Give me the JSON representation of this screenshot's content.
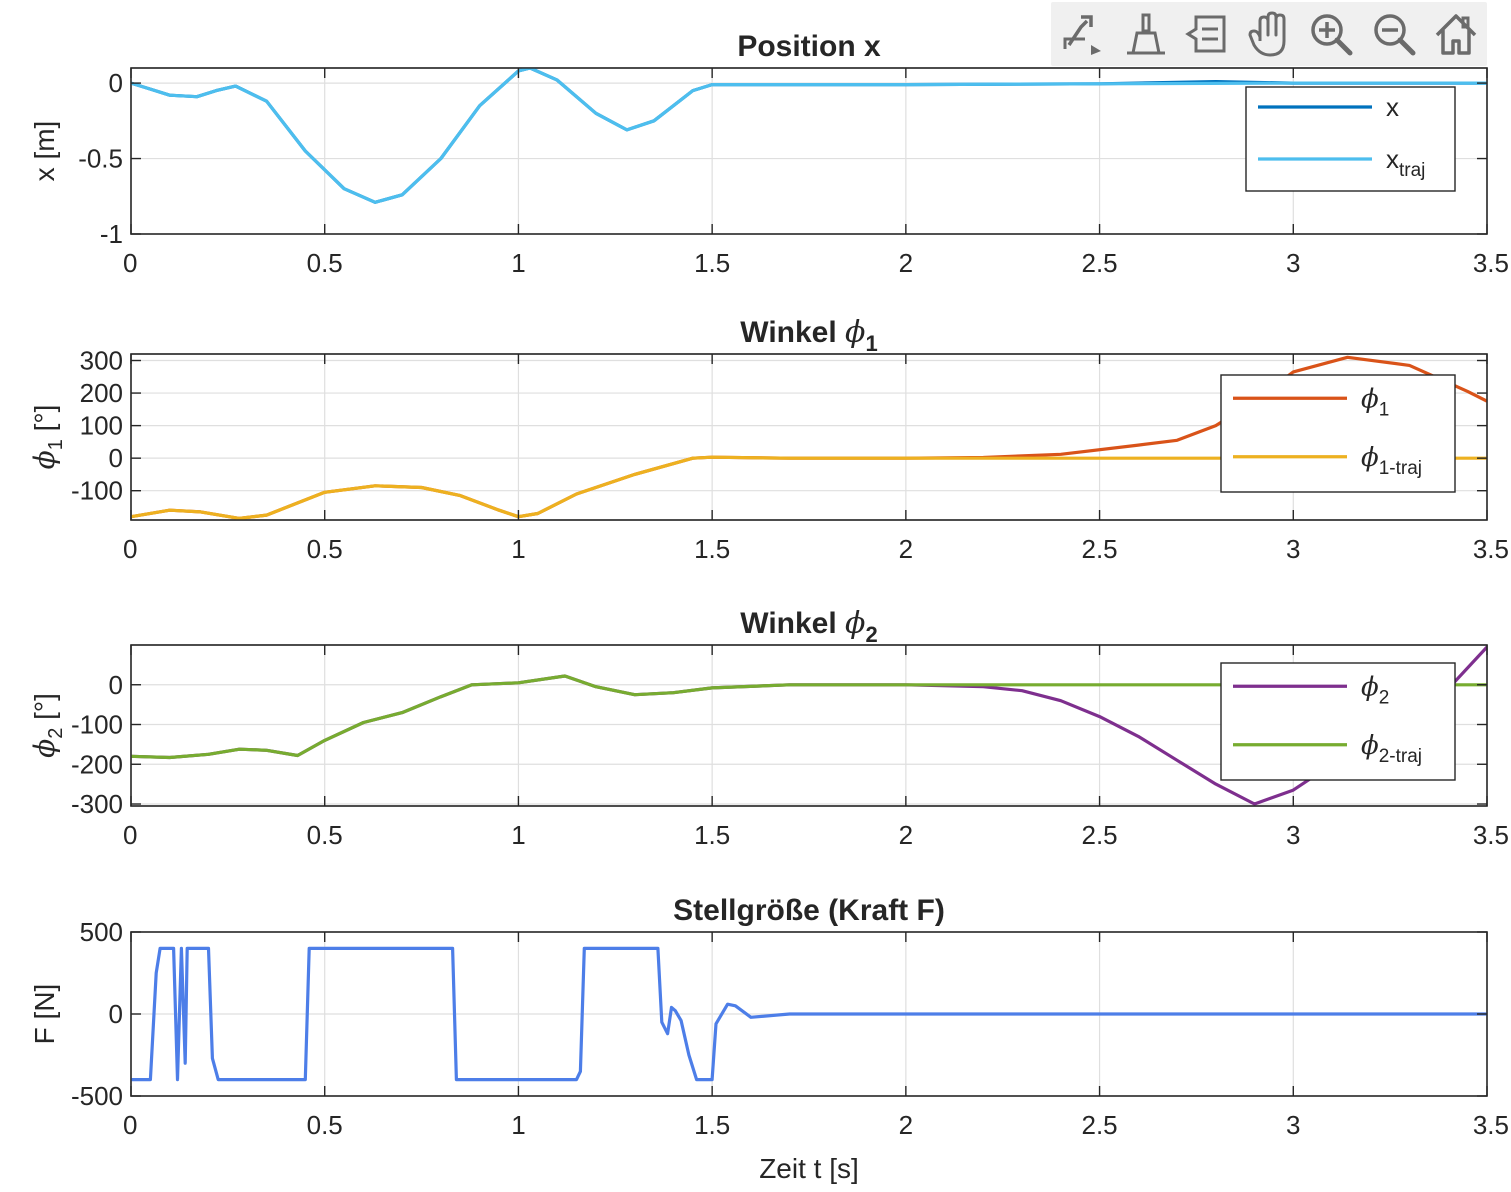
{
  "toolbar": {
    "buttons": [
      {
        "name": "export-icon"
      },
      {
        "name": "brush-icon"
      },
      {
        "name": "data-tips-icon"
      },
      {
        "name": "pan-hand-icon"
      },
      {
        "name": "zoom-in-icon"
      },
      {
        "name": "zoom-out-icon"
      },
      {
        "name": "home-icon"
      }
    ]
  },
  "xlabel": "Zeit t [s]",
  "chart_data": [
    {
      "type": "line",
      "title": "Position x",
      "ylabel": "x [m]",
      "xlim": [
        0,
        3.5
      ],
      "ylim": [
        -1,
        0.1
      ],
      "xticks": [
        0,
        0.5,
        1,
        1.5,
        2,
        2.5,
        3,
        3.5
      ],
      "xtick_labels": [
        "0",
        "0.5",
        "1",
        "1.5",
        "2",
        "2.5",
        "3",
        "3.5"
      ],
      "yticks": [
        -1,
        -0.5,
        0
      ],
      "ytick_labels": [
        "-1",
        "-0.5",
        "0"
      ],
      "grid": true,
      "legend": "top-right",
      "series": [
        {
          "name": "x",
          "name_sub": "",
          "color": "#0072BD",
          "x": [
            0,
            0.05,
            0.1,
            0.17,
            0.22,
            0.27,
            0.35,
            0.45,
            0.55,
            0.63,
            0.7,
            0.8,
            0.9,
            1.0,
            1.03,
            1.1,
            1.2,
            1.28,
            1.35,
            1.45,
            1.5,
            2.0,
            2.5,
            2.8,
            3.0,
            3.5
          ],
          "y": [
            0,
            -0.04,
            -0.08,
            -0.09,
            -0.05,
            -0.02,
            -0.12,
            -0.45,
            -0.7,
            -0.79,
            -0.74,
            -0.5,
            -0.15,
            0.08,
            0.1,
            0.02,
            -0.2,
            -0.31,
            -0.25,
            -0.05,
            -0.01,
            -0.01,
            -0.005,
            0.01,
            0,
            0
          ]
        },
        {
          "name": "x",
          "name_sub": "traj",
          "color": "#4DBEEE",
          "x": [
            0,
            0.05,
            0.1,
            0.17,
            0.22,
            0.27,
            0.35,
            0.45,
            0.55,
            0.63,
            0.7,
            0.8,
            0.9,
            1.0,
            1.03,
            1.1,
            1.2,
            1.28,
            1.35,
            1.45,
            1.5,
            2.0,
            2.5,
            3.0,
            3.5
          ],
          "y": [
            0,
            -0.04,
            -0.08,
            -0.09,
            -0.05,
            -0.02,
            -0.12,
            -0.45,
            -0.7,
            -0.79,
            -0.74,
            -0.5,
            -0.15,
            0.08,
            0.1,
            0.02,
            -0.2,
            -0.31,
            -0.25,
            -0.05,
            -0.01,
            -0.01,
            -0.005,
            0,
            0
          ]
        }
      ]
    },
    {
      "type": "line",
      "title": "Winkel ",
      "title_sym": "ϕ",
      "title_sub": "1",
      "ylabel": "[°]",
      "ylabel_sym": "ϕ",
      "ylabel_sub": "1",
      "xlim": [
        0,
        3.5
      ],
      "ylim": [
        -190,
        320
      ],
      "xticks": [
        0,
        0.5,
        1,
        1.5,
        2,
        2.5,
        3,
        3.5
      ],
      "xtick_labels": [
        "0",
        "0.5",
        "1",
        "1.5",
        "2",
        "2.5",
        "3",
        "3.5"
      ],
      "yticks": [
        -100,
        0,
        100,
        200,
        300
      ],
      "ytick_labels": [
        "-100",
        "0",
        "100",
        "200",
        "300"
      ],
      "grid": true,
      "legend": "top-right",
      "series": [
        {
          "name": "ϕ",
          "name_sub": "1",
          "color": "#D95319",
          "x": [
            0,
            0.1,
            0.18,
            0.28,
            0.35,
            0.5,
            0.63,
            0.75,
            0.85,
            0.95,
            1.0,
            1.05,
            1.15,
            1.3,
            1.45,
            1.5,
            1.7,
            2.0,
            2.2,
            2.4,
            2.6,
            2.7,
            2.8,
            2.9,
            3.0,
            3.14,
            3.3,
            3.45,
            3.5
          ],
          "y": [
            -180,
            -160,
            -165,
            -185,
            -175,
            -105,
            -85,
            -90,
            -115,
            -160,
            -180,
            -170,
            -110,
            -50,
            0,
            3,
            0,
            0,
            2,
            12,
            40,
            55,
            100,
            175,
            265,
            310,
            285,
            205,
            175
          ]
        },
        {
          "name": "ϕ",
          "name_sub": "1-traj",
          "color": "#EDB120",
          "x": [
            0,
            0.1,
            0.18,
            0.28,
            0.35,
            0.5,
            0.63,
            0.75,
            0.85,
            0.95,
            1.0,
            1.05,
            1.15,
            1.3,
            1.45,
            1.5,
            1.7,
            2.0,
            2.5,
            3.0,
            3.5
          ],
          "y": [
            -180,
            -160,
            -165,
            -185,
            -175,
            -105,
            -85,
            -90,
            -115,
            -160,
            -180,
            -170,
            -110,
            -50,
            0,
            3,
            0,
            0,
            0,
            0,
            0
          ]
        }
      ]
    },
    {
      "type": "line",
      "title": "Winkel ",
      "title_sym": "ϕ",
      "title_sub": "2",
      "ylabel": "[°]",
      "ylabel_sym": "ϕ",
      "ylabel_sub": "2",
      "xlim": [
        0,
        3.5
      ],
      "ylim": [
        -305,
        100
      ],
      "xticks": [
        0,
        0.5,
        1,
        1.5,
        2,
        2.5,
        3,
        3.5
      ],
      "xtick_labels": [
        "0",
        "0.5",
        "1",
        "1.5",
        "2",
        "2.5",
        "3",
        "3.5"
      ],
      "yticks": [
        -300,
        -200,
        -100,
        0
      ],
      "ytick_labels": [
        "-300",
        "-200",
        "-100",
        "0"
      ],
      "grid": true,
      "legend": "top-right",
      "series": [
        {
          "name": "ϕ",
          "name_sub": "2",
          "color": "#7E2F8E",
          "x": [
            0,
            0.1,
            0.2,
            0.28,
            0.35,
            0.43,
            0.5,
            0.6,
            0.7,
            0.8,
            0.88,
            1.0,
            1.12,
            1.2,
            1.3,
            1.4,
            1.5,
            1.7,
            2.0,
            2.2,
            2.3,
            2.4,
            2.5,
            2.6,
            2.7,
            2.8,
            2.9,
            3.0,
            3.1,
            3.2,
            3.3,
            3.4,
            3.5
          ],
          "y": [
            -180,
            -183,
            -175,
            -162,
            -165,
            -178,
            -140,
            -95,
            -70,
            -30,
            0,
            5,
            22,
            -5,
            -25,
            -20,
            -8,
            0,
            0,
            -5,
            -15,
            -40,
            -80,
            -130,
            -190,
            -250,
            -300,
            -265,
            -200,
            -150,
            -90,
            -10,
            95
          ]
        },
        {
          "name": "ϕ",
          "name_sub": "2-traj",
          "color": "#77AC30",
          "x": [
            0,
            0.1,
            0.2,
            0.28,
            0.35,
            0.43,
            0.5,
            0.6,
            0.7,
            0.8,
            0.88,
            1.0,
            1.12,
            1.2,
            1.3,
            1.4,
            1.5,
            1.7,
            2.0,
            2.5,
            3.0,
            3.5
          ],
          "y": [
            -180,
            -183,
            -175,
            -162,
            -165,
            -178,
            -140,
            -95,
            -70,
            -30,
            0,
            5,
            22,
            -5,
            -25,
            -20,
            -8,
            0,
            0,
            0,
            0,
            0
          ]
        }
      ]
    },
    {
      "type": "line",
      "title": "Stellgröße (Kraft F)",
      "ylabel": "F [N]",
      "xlim": [
        0,
        3.5
      ],
      "ylim": [
        -500,
        500
      ],
      "xticks": [
        0,
        0.5,
        1,
        1.5,
        2,
        2.5,
        3,
        3.5
      ],
      "xtick_labels": [
        "0",
        "0.5",
        "1",
        "1.5",
        "2",
        "2.5",
        "3",
        "3.5"
      ],
      "yticks": [
        -500,
        0,
        500
      ],
      "ytick_labels": [
        "-500",
        "0",
        "500"
      ],
      "grid": true,
      "legend": "none",
      "series": [
        {
          "name": "",
          "color": "#4D7EE8",
          "x": [
            0,
            0.05,
            0.065,
            0.075,
            0.11,
            0.12,
            0.13,
            0.14,
            0.145,
            0.155,
            0.17,
            0.2,
            0.21,
            0.225,
            0.45,
            0.46,
            0.83,
            0.84,
            1.15,
            1.16,
            1.17,
            1.36,
            1.37,
            1.385,
            1.395,
            1.405,
            1.42,
            1.44,
            1.46,
            1.49,
            1.5,
            1.51,
            1.54,
            1.56,
            1.6,
            1.7,
            2.0,
            2.5,
            3.0,
            3.5
          ],
          "y": [
            -400,
            -400,
            250,
            400,
            400,
            -400,
            400,
            -300,
            400,
            400,
            400,
            400,
            -270,
            -400,
            -400,
            400,
            400,
            -400,
            -400,
            -350,
            400,
            400,
            -50,
            -120,
            40,
            20,
            -40,
            -250,
            -400,
            -400,
            -400,
            -60,
            60,
            50,
            -20,
            0,
            0,
            0,
            0,
            0
          ]
        }
      ]
    }
  ]
}
